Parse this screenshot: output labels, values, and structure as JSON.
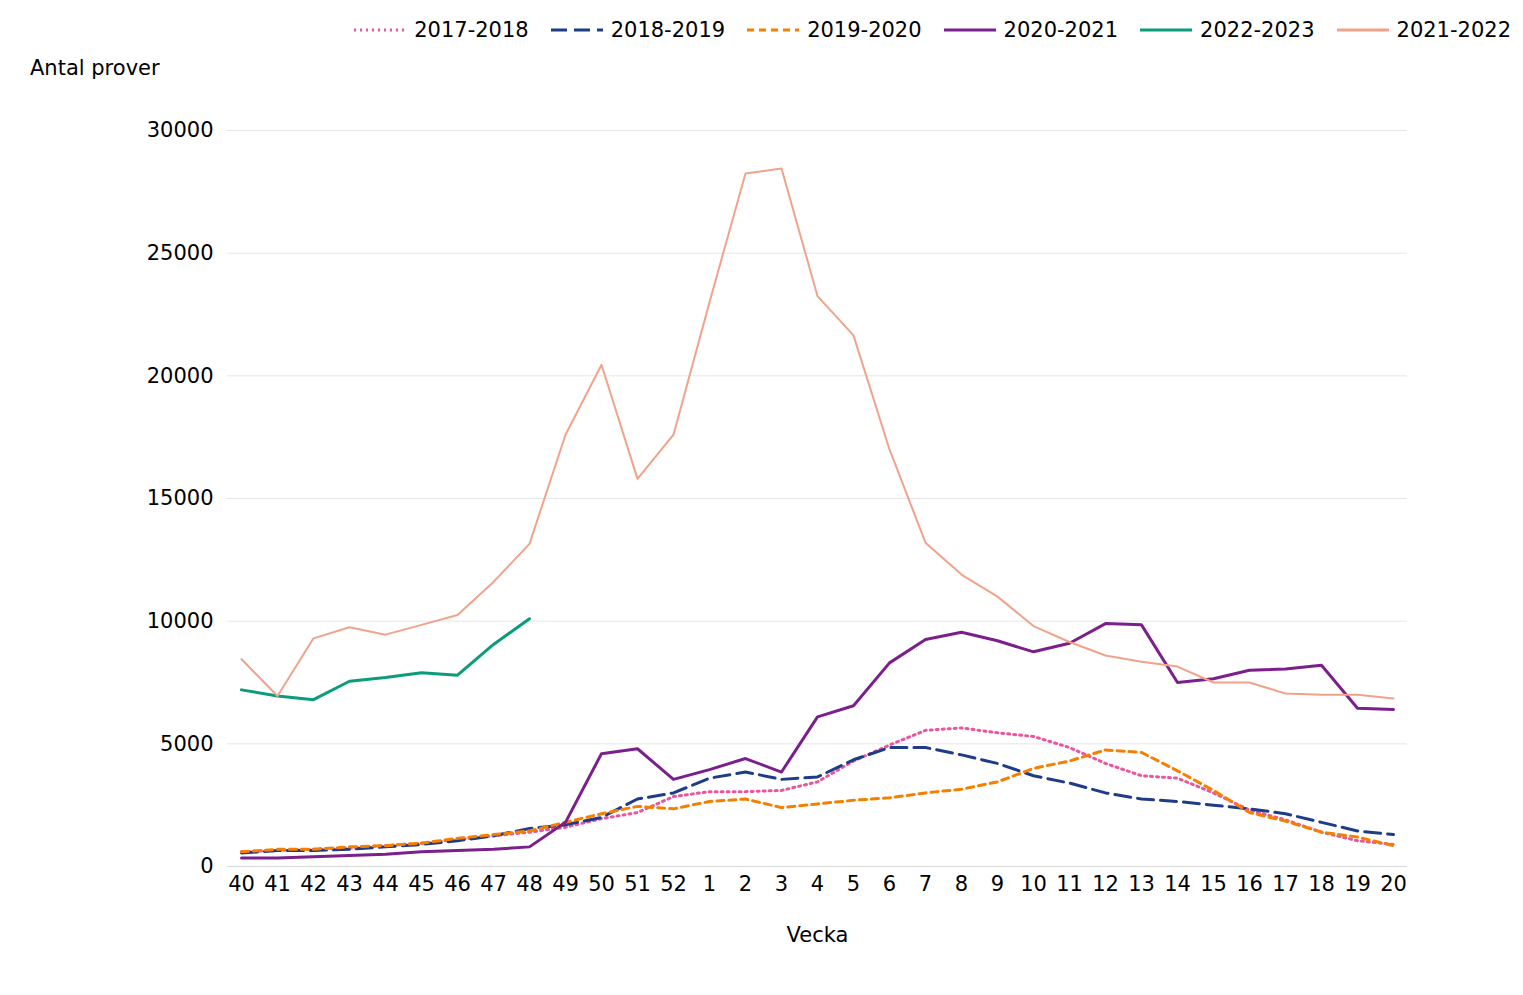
{
  "chart_data": {
    "type": "line",
    "x_label": "Vecka",
    "y_label": "Antal prover",
    "categories": [
      40,
      41,
      42,
      43,
      44,
      45,
      46,
      47,
      48,
      49,
      50,
      51,
      52,
      1,
      2,
      3,
      4,
      5,
      6,
      7,
      8,
      9,
      10,
      11,
      12,
      13,
      14,
      15,
      16,
      17,
      18,
      19,
      20
    ],
    "ylim": [
      0,
      30000
    ],
    "yticks": [
      0,
      5000,
      10000,
      15000,
      20000,
      25000,
      30000
    ],
    "grid": true,
    "legend": "top",
    "series": [
      {
        "name": "2017-2018",
        "color": "#e8579e",
        "line_style": "dotted",
        "values": [
          600,
          650,
          700,
          750,
          850,
          950,
          1100,
          1250,
          1400,
          1600,
          1950,
          2200,
          2850,
          3050,
          3050,
          3100,
          3450,
          4300,
          4950,
          5550,
          5650,
          5450,
          5300,
          4850,
          4200,
          3700,
          3600,
          3000,
          2300,
          1900,
          1400,
          1050,
          900
        ]
      },
      {
        "name": "2018-2019",
        "color": "#1f3c88",
        "line_style": "long-dashed",
        "values": [
          550,
          650,
          650,
          700,
          800,
          900,
          1050,
          1250,
          1550,
          1700,
          2000,
          2750,
          3000,
          3600,
          3850,
          3550,
          3650,
          4350,
          4850,
          4850,
          4550,
          4200,
          3700,
          3400,
          3000,
          2750,
          2650,
          2500,
          2350,
          2150,
          1800,
          1450,
          1300
        ]
      },
      {
        "name": "2019-2020",
        "color": "#f77f00",
        "line_style": "dashed",
        "values": [
          600,
          700,
          700,
          800,
          850,
          950,
          1150,
          1300,
          1450,
          1800,
          2150,
          2450,
          2350,
          2650,
          2750,
          2400,
          2550,
          2700,
          2800,
          3000,
          3150,
          3450,
          4000,
          4300,
          4750,
          4650,
          3900,
          3100,
          2200,
          1850,
          1400,
          1200,
          850
        ]
      },
      {
        "name": "2020-2021",
        "color": "#7b1f8c",
        "line_style": "solid",
        "values": [
          350,
          350,
          400,
          450,
          500,
          600,
          650,
          700,
          800,
          1800,
          4600,
          4800,
          3550,
          3950,
          4400,
          3850,
          6100,
          6550,
          8300,
          9250,
          9550,
          9200,
          8750,
          9100,
          9900,
          9850,
          7500,
          7650,
          8000,
          8050,
          8200,
          6450,
          6400
        ]
      },
      {
        "name": "2022-2023",
        "color": "#0b9c7a",
        "line_style": "solid",
        "values": [
          7200,
          6950,
          6800,
          7550,
          7700,
          7900,
          7800,
          9050,
          10100,
          null,
          null,
          null,
          null,
          null,
          null,
          null,
          null,
          null,
          null,
          null,
          null,
          null,
          null,
          null,
          null,
          null,
          null,
          null,
          null,
          null,
          null,
          null,
          null
        ]
      },
      {
        "name": "2021-2022",
        "color": "#f0a38a",
        "line_style": "solid",
        "values": [
          8450,
          6950,
          9300,
          9750,
          9450,
          9850,
          10250,
          11600,
          13150,
          17600,
          20450,
          15800,
          17600,
          23000,
          28250,
          28450,
          23250,
          21650,
          17000,
          13200,
          11900,
          11000,
          9800,
          9150,
          8600,
          8350,
          8150,
          7500,
          7500,
          7050,
          7000,
          7000,
          6850
        ]
      }
    ]
  }
}
